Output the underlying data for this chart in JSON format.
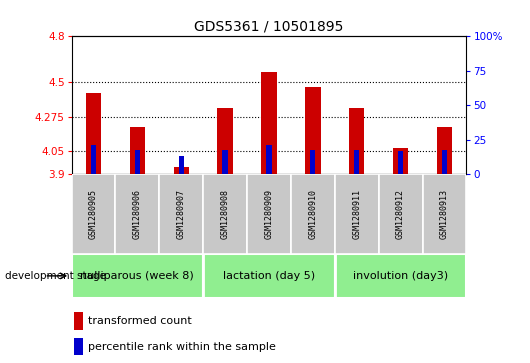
{
  "title": "GDS5361 / 10501895",
  "samples": [
    "GSM1280905",
    "GSM1280906",
    "GSM1280907",
    "GSM1280908",
    "GSM1280909",
    "GSM1280910",
    "GSM1280911",
    "GSM1280912",
    "GSM1280913"
  ],
  "red_values": [
    4.43,
    4.21,
    3.95,
    4.33,
    4.57,
    4.47,
    4.33,
    4.07,
    4.21
  ],
  "blue_values": [
    4.09,
    4.06,
    4.02,
    4.06,
    4.09,
    4.06,
    4.06,
    4.05,
    4.06
  ],
  "ylim_left": [
    3.9,
    4.8
  ],
  "yticks_left": [
    3.9,
    4.05,
    4.275,
    4.5,
    4.8
  ],
  "ytick_labels_left": [
    "3.9",
    "4.05",
    "4.275",
    "4.5",
    "4.8"
  ],
  "ylim_right": [
    0,
    100
  ],
  "yticks_right": [
    0,
    25,
    50,
    75,
    100
  ],
  "ytick_labels_right": [
    "0",
    "25",
    "50",
    "75",
    "100%"
  ],
  "hlines": [
    4.05,
    4.275,
    4.5
  ],
  "groups": [
    {
      "label": "nulliparous (week 8)",
      "start": 0,
      "end": 3
    },
    {
      "label": "lactation (day 5)",
      "start": 3,
      "end": 6
    },
    {
      "label": "involution (day3)",
      "start": 6,
      "end": 9
    }
  ],
  "group_boundaries": [
    3,
    6
  ],
  "bar_bottom": 3.9,
  "red_color": "#CC0000",
  "blue_color": "#0000CC",
  "bar_width": 0.35,
  "blue_bar_width": 0.12,
  "group_color": "#90EE90",
  "sample_bg_color": "#C8C8C8",
  "dev_stage_label": "development stage",
  "legend_red": "transformed count",
  "legend_blue": "percentile rank within the sample",
  "title_fontsize": 10,
  "tick_fontsize": 7.5,
  "sample_fontsize": 6,
  "group_fontsize": 8,
  "legend_fontsize": 8
}
